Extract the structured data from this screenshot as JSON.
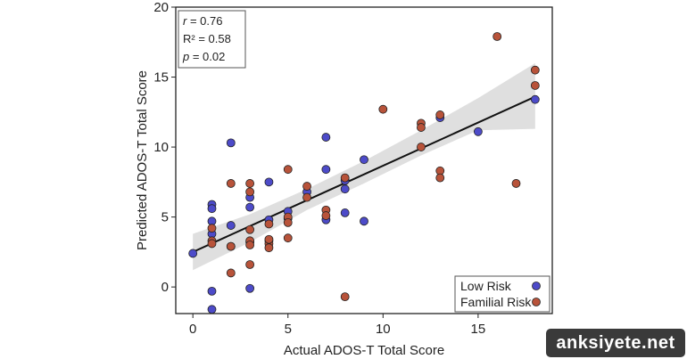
{
  "chart_data": {
    "type": "scatter",
    "title": "",
    "xlabel": "Actual ADOS-T Total Score",
    "ylabel": "Predicted ADOS-T Total Score",
    "xlim": [
      -0.9,
      18.9
    ],
    "ylim": [
      -1.9,
      20
    ],
    "xticks": [
      0,
      5,
      10,
      15
    ],
    "yticks": [
      0,
      5,
      10,
      15,
      20
    ],
    "grid": false,
    "legend_position": "bottom-right",
    "stats": {
      "r_label": "r",
      "r_value": " = 0.76",
      "r2_label": "R² = 0.58",
      "p_label": "p",
      "p_value": " = 0.02"
    },
    "fit_line": {
      "x": [
        0,
        18
      ],
      "y": [
        2.5,
        13.6
      ]
    },
    "confidence_band": {
      "x": [
        0,
        3,
        6,
        9,
        12,
        15,
        18
      ],
      "upper": [
        3.8,
        5.2,
        7.0,
        9.0,
        11.2,
        13.5,
        16.0
      ],
      "lower": [
        1.2,
        3.2,
        5.5,
        7.4,
        9.4,
        11.2,
        11.3
      ]
    },
    "series": [
      {
        "name": "Low Risk",
        "color": "#4d4bc9",
        "x": [
          0,
          1,
          1,
          1,
          1,
          1,
          1,
          2,
          2,
          2,
          3,
          3,
          3,
          3,
          4,
          4,
          4,
          5,
          5,
          6,
          7,
          7,
          7,
          8,
          8,
          8,
          9,
          9,
          13,
          15,
          18
        ],
        "y": [
          2.4,
          5.9,
          5.6,
          4.7,
          3.8,
          -0.3,
          -1.6,
          10.3,
          4.4,
          2.9,
          6.4,
          5.7,
          3.2,
          -0.1,
          7.5,
          4.8,
          3.3,
          5.4,
          4.9,
          6.8,
          10.7,
          8.4,
          4.8,
          7.0,
          5.3,
          7.6,
          9.1,
          4.7,
          12.1,
          11.1,
          13.4
        ]
      },
      {
        "name": "Familial Risk",
        "color": "#b8533a",
        "x": [
          1,
          1,
          1,
          2,
          2,
          2,
          3,
          3,
          3,
          3,
          3,
          3,
          4,
          4,
          4,
          4,
          5,
          5,
          5,
          5,
          6,
          6,
          7,
          7,
          8,
          8,
          10,
          12,
          12,
          12,
          13,
          13,
          13,
          16,
          17,
          18,
          18
        ],
        "y": [
          4.2,
          3.3,
          3.1,
          7.4,
          2.9,
          1.0,
          7.4,
          6.8,
          4.1,
          1.6,
          3.3,
          3.0,
          4.5,
          3.1,
          2.8,
          3.4,
          8.4,
          5.0,
          4.6,
          3.5,
          7.2,
          6.4,
          5.5,
          5.1,
          7.8,
          -0.7,
          12.7,
          11.7,
          11.4,
          10.0,
          12.3,
          8.3,
          7.8,
          17.9,
          7.4,
          15.5,
          14.4
        ]
      }
    ]
  },
  "watermark": {
    "text": "anksiyete.net"
  }
}
